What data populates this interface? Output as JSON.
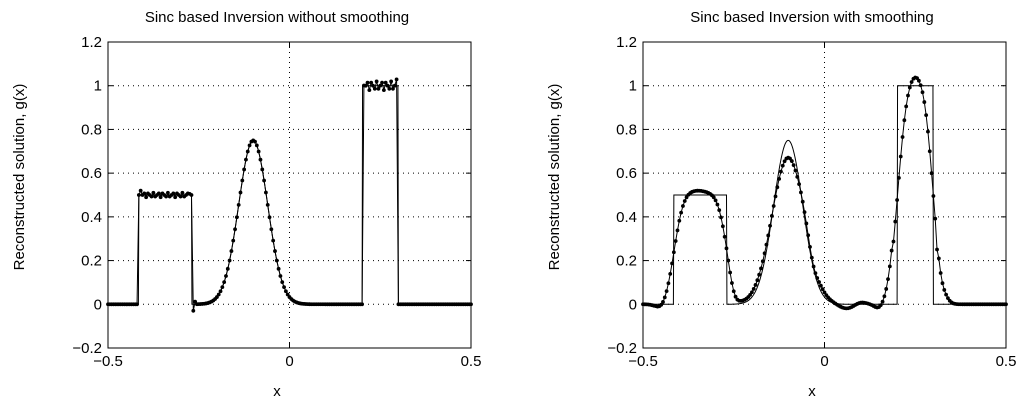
{
  "chart_data": [
    {
      "type": "line",
      "title": "Sinc based Inversion without smoothing",
      "xlabel": "x",
      "ylabel": "Reconstructed solution, g(x)",
      "xlim": [
        -0.5,
        0.5
      ],
      "ylim": [
        -0.2,
        1.2
      ],
      "xticks": [
        -0.5,
        0,
        0.5
      ],
      "xtick_labels": [
        "−0.5",
        "0",
        "0.5"
      ],
      "yticks": [
        -0.2,
        0,
        0.2,
        0.4,
        0.6,
        0.8,
        1,
        1.2
      ],
      "ytick_labels": [
        "−0.2",
        "0",
        "0.2",
        "0.4",
        "0.6",
        "0.8",
        "1",
        "1.2"
      ],
      "grid": "dotted",
      "exact_function": {
        "description_of_shape": "boxes and gaussian",
        "box1": {
          "x_start": -0.415,
          "x_end": -0.27,
          "height": 0.5
        },
        "gaussian": {
          "center": -0.1,
          "amplitude": 0.75,
          "sigma": 0.04
        },
        "box2": {
          "x_start": 0.2,
          "x_end": 0.3,
          "height": 1.0
        }
      },
      "reconstruction": {
        "marker": "dot",
        "overshoot": 0.03,
        "plateau_oscillation": 0.02,
        "undershoot_after_box1": -0.03
      }
    },
    {
      "type": "line",
      "title": "Sinc based Inversion with smoothing",
      "xlabel": "x",
      "ylabel": "Reconstructed solution, g(x)",
      "xlim": [
        -0.5,
        0.5
      ],
      "ylim": [
        -0.2,
        1.2
      ],
      "xticks": [
        -0.5,
        0,
        0.5
      ],
      "xtick_labels": [
        "−0.5",
        "0",
        "0.5"
      ],
      "yticks": [
        -0.2,
        0,
        0.2,
        0.4,
        0.6,
        0.8,
        1,
        1.2
      ],
      "ytick_labels": [
        "−0.2",
        "0",
        "0.2",
        "0.4",
        "0.6",
        "0.8",
        "1",
        "1.2"
      ],
      "grid": "dotted",
      "exact_function": {
        "box1": {
          "x_start": -0.415,
          "x_end": -0.27,
          "height": 0.5
        },
        "gaussian": {
          "center": -0.1,
          "amplitude": 0.75,
          "sigma": 0.04
        },
        "box2": {
          "x_start": 0.2,
          "x_end": 0.3,
          "height": 1.0
        }
      },
      "reconstruction": {
        "marker": "dot",
        "smooth_box1_peak": 0.52,
        "smooth_gaussian_peak": 0.7,
        "smooth_box2_peak": 1.065,
        "ripple_min": -0.035
      }
    }
  ]
}
